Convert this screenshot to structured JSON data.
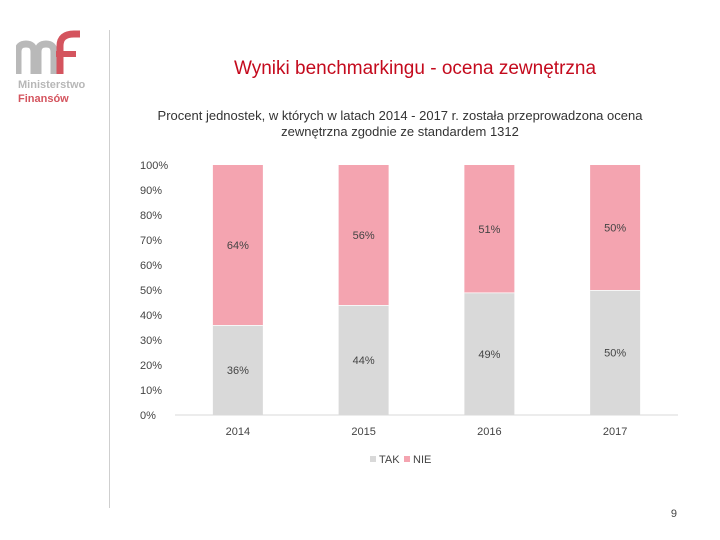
{
  "logo": {
    "line1": "Ministerstwo",
    "line2": "Finansów"
  },
  "slide": {
    "title": "Wyniki benchmarkingu - ocena zewnętrzna",
    "page_number": "9"
  },
  "colors": {
    "tak": "#d9d9d9",
    "nie": "#f4a4b0",
    "title": "#c40a1d"
  },
  "chart_data": {
    "type": "bar",
    "stacked": true,
    "title": "Procent jednostek, w których w latach 2014 - 2017 r. została przeprowadzona ocena zewnętrzna zgodnie ze standardem 1312",
    "categories": [
      "2014",
      "2015",
      "2016",
      "2017"
    ],
    "series": [
      {
        "name": "TAK",
        "values": [
          36,
          44,
          49,
          50
        ],
        "labels": [
          "36%",
          "44%",
          "49%",
          "50%"
        ]
      },
      {
        "name": "NIE",
        "values": [
          64,
          56,
          51,
          50
        ],
        "labels": [
          "64%",
          "56%",
          "51%",
          "50%"
        ]
      }
    ],
    "ylim": [
      0,
      100
    ],
    "yticks": [
      "0%",
      "10%",
      "20%",
      "30%",
      "40%",
      "50%",
      "60%",
      "70%",
      "80%",
      "90%",
      "100%"
    ],
    "legend": [
      "TAK",
      "NIE"
    ],
    "legend_position": "bottom"
  }
}
